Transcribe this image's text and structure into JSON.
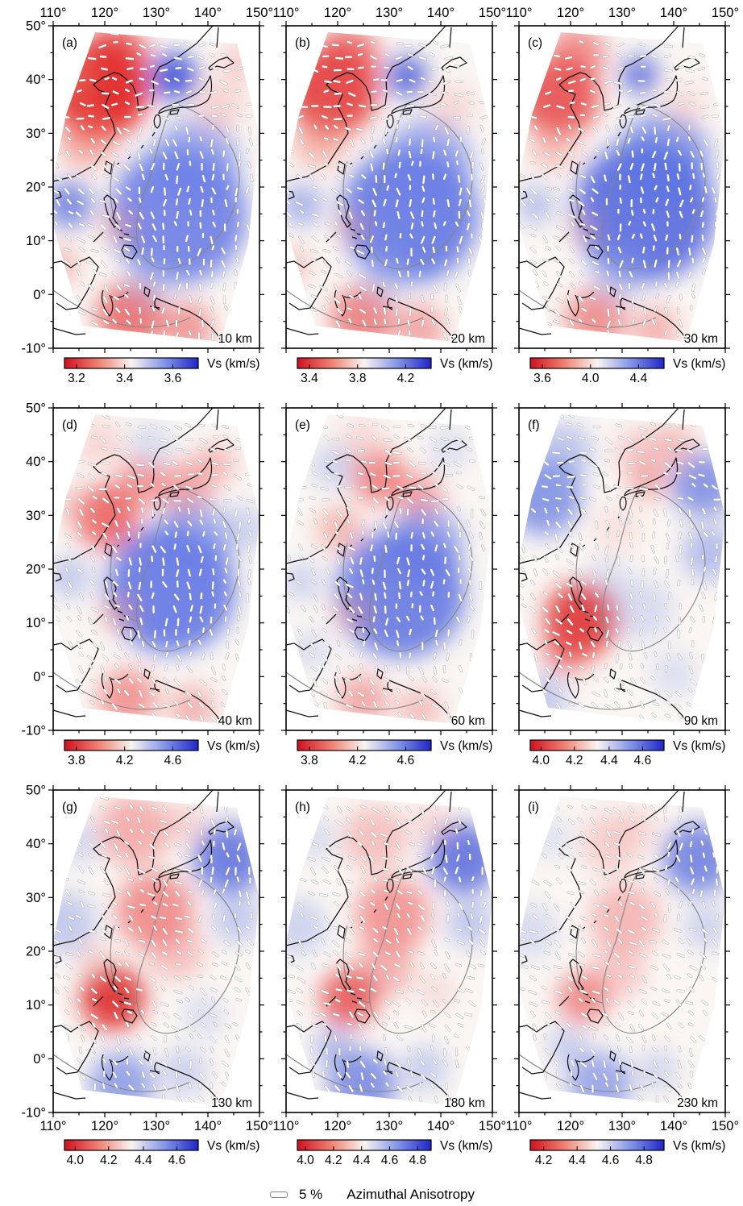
{
  "axes": {
    "lon_values": [
      110,
      120,
      130,
      140,
      150
    ],
    "lon_labels": [
      "110°",
      "120°",
      "130°",
      "140°",
      "150°"
    ],
    "lat_values": [
      50,
      40,
      30,
      20,
      10,
      0,
      -10
    ],
    "lat_labels": [
      "50°",
      "40°",
      "30°",
      "20°",
      "10°",
      "0°",
      "-10°"
    ]
  },
  "colorbar": {
    "label": "Vs (km/s)",
    "gradient": [
      "#d01020",
      "#ee8070",
      "#f9f4f2",
      "#8494e8",
      "#2026c8"
    ]
  },
  "legend": {
    "percent": "5 %",
    "label": "Azimuthal Anisotropy"
  },
  "map": {
    "region_polygon": [
      [
        52,
        8
      ],
      [
        228,
        22
      ],
      [
        256,
        135
      ],
      [
        242,
        270
      ],
      [
        208,
        392
      ],
      [
        36,
        372
      ],
      [
        0,
        248
      ],
      [
        0,
        188
      ],
      [
        16,
        110
      ]
    ],
    "coastlines": [
      "M198,0 L178,22 L156,38 L141,47 L132,51 L127,60 L124,67 L125,83 L123,98 L114,103 L106,105 L104,87 L99,75 L93,68 L83,60 L76,58 L62,64 L50,73 L57,80 L70,85 L64,100 L70,112 L74,120 L77,133 L64,153 L51,173 L38,180 L26,187 L12,190 L0,193",
      "M131,109 C140,104 155,101 166,101 C176,101 186,98 192,92 C196,86 198,76 195,62 C192,70 186,79 178,84 C168,90 152,96 142,100 C136,102 131,105 131,109 Z",
      "M127,112 C124,117 125,124 129,127 C133,124 134,118 132,112 C130,110 128,110 127,112 Z",
      "M146,106 L156,104 L154,109 L145,110 Z",
      "M195,55 L203,50 L212,52 L224,46 L216,39 L206,42 L199,47 L193,52 Z",
      "M203,27 L205,2",
      "M66,168 L73,172 L71,184 L64,179 Z",
      "M0,205 L8,206 L10,212 L3,215",
      "M67,210 L75,216 L78,224 L74,238 L80,246 L76,250 L70,240 L66,228 L63,214 Z",
      "M80,252 L86,254 M88,258 L94,259 M82,262 L88,264",
      "M88,272 L99,273 L104,280 L98,289 L89,286 L85,278 Z",
      "M50,268 L62,256",
      "M0,294 L10,292 L22,300 L32,293 L45,287 L56,299 L50,314 L42,330 L30,350 L16,352 L4,344",
      "M62,328 C58,338 62,350 70,360 C76,352 74,342 70,334 M72,336 C80,339 88,336 93,330",
      "M0,375 L14,379 L28,383 L40,382",
      "M114,324 L120,328 L118,336 L113,332 Z",
      "M128,338 C124,344 126,350 132,352 M128,338 L140,343 L155,349 L170,355 L182,362 L194,372 L203,382 L208,390",
      "M120,348 L132,350",
      "M126,132 L123,137 M112,148 L109,152 M96,162 L93,165 M82,170 L79,172"
    ],
    "boundaries": [
      "M150,97 C196,108 232,148 231,192 C229,238 196,286 152,300 C127,307 108,291 104,264 C101,236 112,210 120,188 C128,162 136,118 150,97 Z",
      "M76,168 C68,196 70,226 80,252",
      "M0,328 C28,348 58,366 92,372 C120,377 150,372 170,362",
      "M104,264 C92,262 84,256 78,248"
    ]
  },
  "panels": [
    {
      "id": "a",
      "label": "(a)",
      "depth": "10 km",
      "cb_ticks": [
        {
          "t": "3.2",
          "p": 0.09
        },
        {
          "t": "3.4",
          "p": 0.45
        },
        {
          "t": "3.6",
          "p": 0.81
        }
      ],
      "blobs": [
        [
          58,
          80,
          60,
          "#e01818",
          0.9
        ],
        [
          78,
          38,
          40,
          "#e43434",
          0.75
        ],
        [
          42,
          140,
          36,
          "#ef6f60",
          0.55
        ],
        [
          20,
          60,
          30,
          "#ee8070",
          0.5
        ],
        [
          150,
          63,
          30,
          "#2a3fd4",
          0.8
        ],
        [
          155,
          235,
          85,
          "#4f66e2",
          0.75
        ],
        [
          176,
          170,
          55,
          "#6a80e8",
          0.6
        ],
        [
          20,
          222,
          29,
          "#4a60dc",
          0.7
        ],
        [
          6,
          298,
          26,
          "#f08a82",
          0.5
        ],
        [
          95,
          360,
          42,
          "#e64646",
          0.7
        ],
        [
          166,
          374,
          32,
          "#ea6060",
          0.6
        ],
        [
          206,
          100,
          30,
          "#f4b2ae",
          0.5
        ],
        [
          231,
          47,
          26,
          "#f2acac",
          0.5
        ],
        [
          79,
          249,
          21,
          "#f09292",
          0.5
        ],
        [
          120,
          318,
          30,
          "#9cadec",
          0.4
        ]
      ]
    },
    {
      "id": "b",
      "label": "(b)",
      "depth": "20 km",
      "cb_ticks": [
        {
          "t": "3.4",
          "p": 0.09
        },
        {
          "t": "3.8",
          "p": 0.45
        },
        {
          "t": "4.2",
          "p": 0.81
        }
      ],
      "blobs": [
        [
          58,
          80,
          56,
          "#e22c2c",
          0.82
        ],
        [
          78,
          38,
          38,
          "#e84848",
          0.68
        ],
        [
          150,
          63,
          26,
          "#3348d2",
          0.75
        ],
        [
          153,
          235,
          85,
          "#4c63e0",
          0.78
        ],
        [
          176,
          170,
          55,
          "#6a80e8",
          0.6
        ],
        [
          20,
          222,
          26,
          "#6a80e4",
          0.55
        ],
        [
          42,
          143,
          33,
          "#f07868",
          0.5
        ],
        [
          95,
          362,
          40,
          "#e84f4f",
          0.65
        ],
        [
          166,
          375,
          30,
          "#ec6868",
          0.55
        ],
        [
          206,
          100,
          28,
          "#f4b4b0",
          0.45
        ],
        [
          79,
          250,
          20,
          "#f09898",
          0.45
        ],
        [
          6,
          298,
          24,
          "#f08c86",
          0.45
        ],
        [
          120,
          315,
          30,
          "#a2b2ec",
          0.4
        ]
      ]
    },
    {
      "id": "c",
      "label": "(c)",
      "depth": "30 km",
      "cb_ticks": [
        {
          "t": "3.6",
          "p": 0.09
        },
        {
          "t": "4.0",
          "p": 0.45
        },
        {
          "t": "4.4",
          "p": 0.81
        }
      ],
      "blobs": [
        [
          50,
          88,
          50,
          "#e43434",
          0.78
        ],
        [
          72,
          36,
          36,
          "#ea5454",
          0.62
        ],
        [
          150,
          61,
          24,
          "#3b4fd4",
          0.7
        ],
        [
          156,
          230,
          88,
          "#4257dc",
          0.8
        ],
        [
          179,
          165,
          58,
          "#5b73e4",
          0.65
        ],
        [
          20,
          222,
          24,
          "#7a8ee6",
          0.5
        ],
        [
          95,
          364,
          38,
          "#e95555",
          0.6
        ],
        [
          169,
          376,
          28,
          "#ed7070",
          0.5
        ],
        [
          206,
          98,
          26,
          "#f6bcb8",
          0.45
        ],
        [
          79,
          252,
          20,
          "#f2a0a0",
          0.4
        ],
        [
          42,
          150,
          29,
          "#f28078",
          0.45
        ],
        [
          122,
          308,
          34,
          "#8c9ee8",
          0.45
        ]
      ]
    },
    {
      "id": "d",
      "label": "(d)",
      "depth": "40 km",
      "cb_ticks": [
        {
          "t": "3.8",
          "p": 0.09
        },
        {
          "t": "4.2",
          "p": 0.45
        },
        {
          "t": "4.6",
          "p": 0.81
        }
      ],
      "blobs": [
        [
          66,
          135,
          40,
          "#e74040",
          0.72
        ],
        [
          108,
          92,
          30,
          "#ed5e5e",
          0.6
        ],
        [
          162,
          100,
          34,
          "#ee6868",
          0.55
        ],
        [
          200,
          70,
          26,
          "#f08282",
          0.5
        ],
        [
          146,
          225,
          80,
          "#4c64e0",
          0.78
        ],
        [
          172,
          165,
          50,
          "#6a80e8",
          0.55
        ],
        [
          58,
          45,
          30,
          "#f4b2b2",
          0.45
        ],
        [
          122,
          45,
          28,
          "#acbaec",
          0.4
        ],
        [
          20,
          210,
          26,
          "#8c9ee8",
          0.5
        ],
        [
          80,
          255,
          22,
          "#f08c8c",
          0.5
        ],
        [
          92,
          360,
          36,
          "#ec5a5a",
          0.6
        ],
        [
          172,
          372,
          28,
          "#ee7272",
          0.5
        ],
        [
          236,
          150,
          30,
          "#9cace8",
          0.45
        ],
        [
          20,
          120,
          24,
          "#f2a49e",
          0.4
        ]
      ]
    },
    {
      "id": "e",
      "label": "(e)",
      "depth": "60 km",
      "cb_ticks": [
        {
          "t": "3.8",
          "p": 0.09
        },
        {
          "t": "4.2",
          "p": 0.45
        },
        {
          "t": "4.6",
          "p": 0.81
        }
      ],
      "blobs": [
        [
          115,
          85,
          34,
          "#ec5252",
          0.66
        ],
        [
          165,
          110,
          30,
          "#ee6666",
          0.55
        ],
        [
          60,
          72,
          28,
          "#a8b6ea",
          0.52
        ],
        [
          66,
          150,
          28,
          "#f07c74",
          0.5
        ],
        [
          142,
          230,
          80,
          "#4760de",
          0.75
        ],
        [
          172,
          170,
          48,
          "#6377e4",
          0.6
        ],
        [
          95,
          42,
          30,
          "#f4b4b4",
          0.42
        ],
        [
          202,
          50,
          26,
          "#b0bcec",
          0.42
        ],
        [
          20,
          215,
          24,
          "#98a8e8",
          0.45
        ],
        [
          80,
          255,
          22,
          "#f09090",
          0.45
        ],
        [
          95,
          362,
          32,
          "#ec6262",
          0.5
        ],
        [
          166,
          373,
          26,
          "#ee7676",
          0.45
        ],
        [
          30,
          300,
          24,
          "#a8b6ea",
          0.4
        ]
      ]
    },
    {
      "id": "f",
      "label": "(f)",
      "depth": "90 km",
      "cb_ticks": [
        {
          "t": "4.0",
          "p": 0.08
        },
        {
          "t": "4.2",
          "p": 0.33
        },
        {
          "t": "4.4",
          "p": 0.59
        },
        {
          "t": "4.6",
          "p": 0.84
        }
      ],
      "blobs": [
        [
          30,
          110,
          48,
          "#5870e0",
          0.68
        ],
        [
          55,
          55,
          36,
          "#8296e6",
          0.5
        ],
        [
          228,
          95,
          40,
          "#4a62dc",
          0.62
        ],
        [
          236,
          180,
          34,
          "#7388e6",
          0.5
        ],
        [
          78,
          262,
          46,
          "#dc1e1e",
          0.82
        ],
        [
          60,
          300,
          30,
          "#e84646",
          0.6
        ],
        [
          150,
          55,
          30,
          "#f0a2a2",
          0.5
        ],
        [
          192,
          45,
          26,
          "#ee8a8a",
          0.5
        ],
        [
          160,
          90,
          24,
          "#ec6a6a",
          0.5
        ],
        [
          122,
          150,
          30,
          "#f4c2be",
          0.4
        ],
        [
          152,
          250,
          40,
          "#acb8ec",
          0.42
        ],
        [
          30,
          360,
          30,
          "#8c9ee8",
          0.5
        ],
        [
          192,
          330,
          28,
          "#b0bcee",
          0.4
        ],
        [
          110,
          210,
          26,
          "#aab6ea",
          0.35
        ]
      ]
    },
    {
      "id": "g",
      "label": "(g)",
      "depth": "130 km",
      "cb_ticks": [
        {
          "t": "4.0",
          "p": 0.08
        },
        {
          "t": "4.2",
          "p": 0.33
        },
        {
          "t": "4.4",
          "p": 0.59
        },
        {
          "t": "4.6",
          "p": 0.84
        }
      ],
      "blobs": [
        [
          100,
          50,
          44,
          "#ee7878",
          0.55
        ],
        [
          126,
          150,
          48,
          "#ec5656",
          0.62
        ],
        [
          74,
          258,
          40,
          "#dc1c1c",
          0.85
        ],
        [
          152,
          200,
          36,
          "#f08282",
          0.45
        ],
        [
          218,
          85,
          44,
          "#3e56da",
          0.72
        ],
        [
          227,
          160,
          30,
          "#8094e6",
          0.45
        ],
        [
          15,
          165,
          38,
          "#90a2e8",
          0.5
        ],
        [
          30,
          65,
          28,
          "#a8b6ea",
          0.45
        ],
        [
          85,
          365,
          40,
          "#5870e0",
          0.6
        ],
        [
          162,
          350,
          30,
          "#98a8e8",
          0.45
        ],
        [
          187,
          280,
          26,
          "#acb8ec",
          0.4
        ],
        [
          52,
          210,
          24,
          "#f2a8a4",
          0.4
        ],
        [
          160,
          40,
          26,
          "#f0a0a0",
          0.42
        ]
      ]
    },
    {
      "id": "h",
      "label": "(h)",
      "depth": "180 km",
      "cb_ticks": [
        {
          "t": "4.0",
          "p": 0.06
        },
        {
          "t": "4.2",
          "p": 0.27
        },
        {
          "t": "4.4",
          "p": 0.48
        },
        {
          "t": "4.6",
          "p": 0.69
        },
        {
          "t": "4.8",
          "p": 0.9
        }
      ],
      "blobs": [
        [
          110,
          60,
          40,
          "#f09090",
          0.5
        ],
        [
          132,
          155,
          46,
          "#ec5e5e",
          0.6
        ],
        [
          122,
          220,
          36,
          "#ee7070",
          0.5
        ],
        [
          78,
          258,
          36,
          "#e23232",
          0.72
        ],
        [
          220,
          85,
          44,
          "#3a52d8",
          0.72
        ],
        [
          229,
          165,
          30,
          "#7f93e6",
          0.45
        ],
        [
          15,
          170,
          36,
          "#9cace8",
          0.45
        ],
        [
          35,
          60,
          28,
          "#b0bcec",
          0.4
        ],
        [
          95,
          365,
          42,
          "#4a62dc",
          0.66
        ],
        [
          172,
          345,
          28,
          "#8ca0e8",
          0.45
        ],
        [
          60,
          320,
          26,
          "#7488e4",
          0.5
        ],
        [
          187,
          250,
          24,
          "#f2b0ac",
          0.35
        ],
        [
          180,
          40,
          24,
          "#f2a8a8",
          0.4
        ]
      ]
    },
    {
      "id": "i",
      "label": "(i)",
      "depth": "230 km",
      "cb_ticks": [
        {
          "t": "4.2",
          "p": 0.1
        },
        {
          "t": "4.4",
          "p": 0.35
        },
        {
          "t": "4.6",
          "p": 0.6
        },
        {
          "t": "4.8",
          "p": 0.85
        }
      ],
      "blobs": [
        [
          115,
          65,
          38,
          "#f2a2a2",
          0.46
        ],
        [
          132,
          160,
          44,
          "#f08282",
          0.52
        ],
        [
          122,
          225,
          34,
          "#f29292",
          0.45
        ],
        [
          80,
          258,
          32,
          "#e95050",
          0.62
        ],
        [
          222,
          85,
          44,
          "#3e56da",
          0.66
        ],
        [
          232,
          170,
          28,
          "#8ca0e8",
          0.4
        ],
        [
          15,
          175,
          34,
          "#a8b6ea",
          0.4
        ],
        [
          40,
          60,
          26,
          "#b6c2ee",
          0.38
        ],
        [
          100,
          365,
          40,
          "#5870e0",
          0.56
        ],
        [
          172,
          348,
          26,
          "#98a8e8",
          0.4
        ],
        [
          60,
          318,
          24,
          "#8498e6",
          0.45
        ],
        [
          150,
          45,
          24,
          "#f4b2b2",
          0.4
        ]
      ]
    }
  ]
}
